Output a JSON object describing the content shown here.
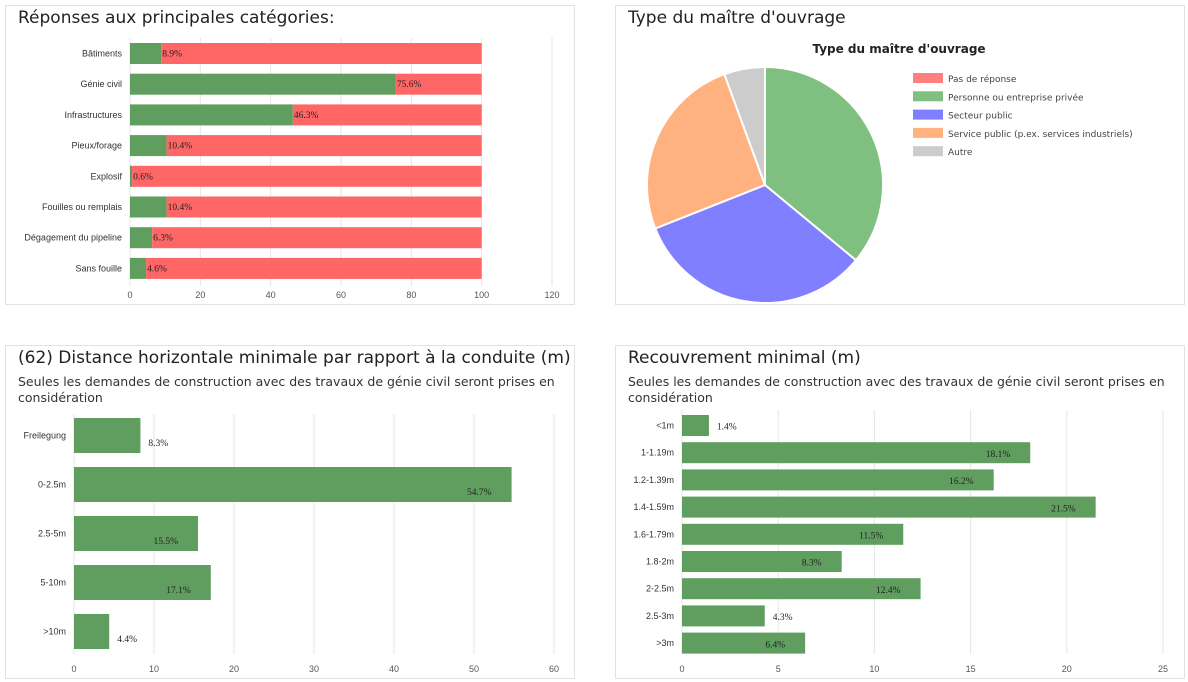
{
  "colors": {
    "green": "#5f9e5f",
    "red": "#ff6666",
    "grid": "#e6e6e6"
  },
  "chart_data": [
    {
      "type": "bar",
      "orientation": "horizontal",
      "stacked": true,
      "title": "Réponses aux principales catégories:",
      "categories": [
        "Bâtiments",
        "Génie civil",
        "Infrastructures",
        "Pieux/forage",
        "Explosif",
        "Fouilles ou remplais",
        "Dégagement du pipeline",
        "Sans fouille"
      ],
      "series": [
        {
          "values": [
            8.9,
            75.6,
            46.3,
            10.4,
            0.6,
            10.4,
            6.3,
            4.6
          ],
          "color": "#5f9e5f"
        },
        {
          "values": [
            91.1,
            24.4,
            53.7,
            89.6,
            99.4,
            89.6,
            93.7,
            95.4
          ],
          "color": "#ff6666"
        }
      ],
      "labels": [
        "8.9%",
        "75.6%",
        "46.3%",
        "10.4%",
        "0.6%",
        "10.4%",
        "6.3%",
        "4.6%"
      ],
      "xlim": [
        0,
        120
      ],
      "xticks": [
        0,
        20,
        40,
        60,
        80,
        100,
        120
      ],
      "grid": true
    },
    {
      "type": "pie",
      "panel_title": "Type du maître d'ouvrage",
      "title": "Type du maître d'ouvrage",
      "legend": "right",
      "slices": [
        {
          "name": "Pas de réponse",
          "value": 0,
          "color": "#ff7f7f"
        },
        {
          "name": "Personne ou entreprise privée",
          "value": 36,
          "color": "#7fbf7f"
        },
        {
          "name": "Secteur public",
          "value": 33,
          "color": "#7f7fff"
        },
        {
          "name": "Service public (p.ex. services industriels)",
          "value": 25.4,
          "color": "#ffb27f"
        },
        {
          "name": "Autre",
          "value": 5.6,
          "color": "#cccccc"
        }
      ]
    },
    {
      "type": "bar",
      "orientation": "horizontal",
      "title": "(62) Distance horizontale minimale par rapport à la conduite (m)",
      "subtitle": "Seules les demandes de construction avec des travaux de génie civil seront prises en considération",
      "categories": [
        "Freilegung",
        "0-2.5m",
        "2.5-5m",
        "5-10m",
        ">10m"
      ],
      "values": [
        8.3,
        54.7,
        15.5,
        17.1,
        4.4
      ],
      "labels": [
        "8.3%",
        "54.7%",
        "15.5%",
        "17.1%",
        "4.4%"
      ],
      "xlim": [
        0,
        60
      ],
      "xticks": [
        0,
        10,
        20,
        30,
        40,
        50,
        60
      ],
      "grid": true
    },
    {
      "type": "bar",
      "orientation": "horizontal",
      "title": "Recouvrement minimal (m)",
      "subtitle": "Seules les demandes de construction avec des travaux de génie civil seront prises en considération",
      "categories": [
        "<1m",
        "1-1.19m",
        "1.2-1.39m",
        "1.4-1.59m",
        "1.6-1.79m",
        "1.8-2m",
        "2-2.5m",
        "2.5-3m",
        ">3m"
      ],
      "values": [
        1.4,
        18.1,
        16.2,
        21.5,
        11.5,
        8.3,
        12.4,
        4.3,
        6.4
      ],
      "labels": [
        "1.4%",
        "18.1%",
        "16.2%",
        "21.5%",
        "11.5%",
        "8.3%",
        "12.4%",
        "4.3%",
        "6.4%"
      ],
      "xlim": [
        0,
        25
      ],
      "xticks": [
        0,
        5,
        10,
        15,
        20,
        25
      ],
      "grid": true
    }
  ]
}
